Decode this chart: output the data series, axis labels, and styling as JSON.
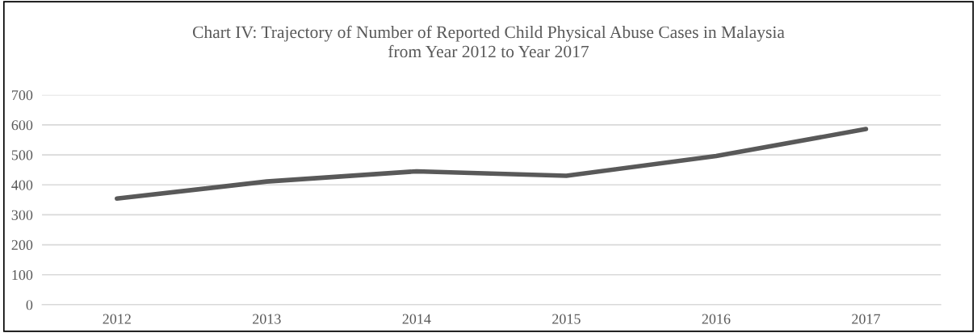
{
  "chart_data": {
    "type": "line",
    "title": "Chart IV: Trajectory of Number of Reported Child Physical Abuse Cases in Malaysia\nfrom Year 2012 to Year 2017",
    "categories": [
      "2012",
      "2013",
      "2014",
      "2015",
      "2016",
      "2017"
    ],
    "series": [
      {
        "color": "#595959",
        "values": [
          354,
          411,
          445,
          430,
          496,
          586
        ]
      }
    ],
    "ylim": [
      0,
      700
    ],
    "yticks": [
      0,
      100,
      200,
      300,
      400,
      500,
      600,
      700
    ],
    "grid": "y",
    "marker": "none",
    "line_style": "solid"
  }
}
